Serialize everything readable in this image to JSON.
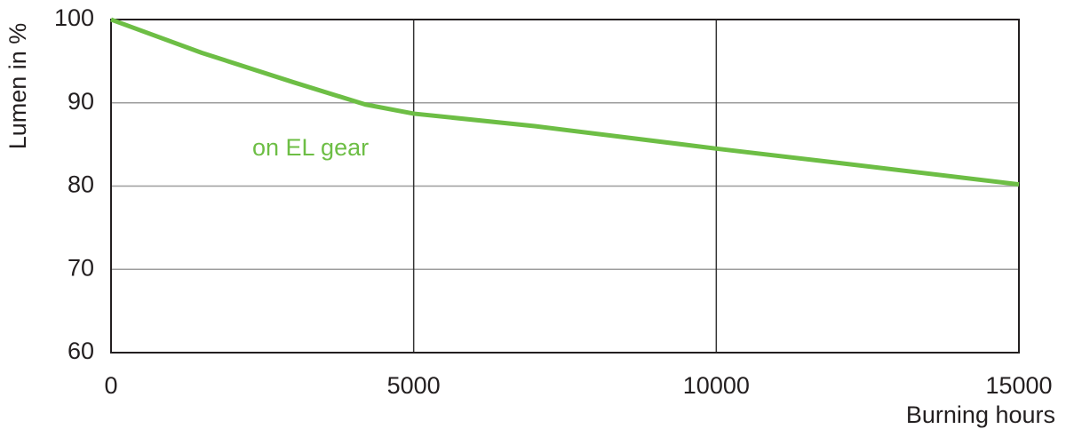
{
  "chart_data": {
    "type": "line",
    "x_label": "Burning hours",
    "y_label": "Lumen in %",
    "x": [
      0,
      1500,
      3000,
      4200,
      5000,
      7000,
      10000,
      12000,
      15000
    ],
    "series": [
      {
        "name": "on EL gear",
        "color": "#6dbe45",
        "values": [
          100,
          96,
          92.5,
          89.8,
          88.7,
          87.2,
          84.5,
          82.8,
          80.2
        ]
      }
    ],
    "xlim": [
      0,
      15000
    ],
    "ylim": [
      60,
      100
    ],
    "xticks": [
      0,
      5000,
      10000,
      15000
    ],
    "yticks": [
      60,
      70,
      80,
      90,
      100
    ],
    "grid": true
  }
}
